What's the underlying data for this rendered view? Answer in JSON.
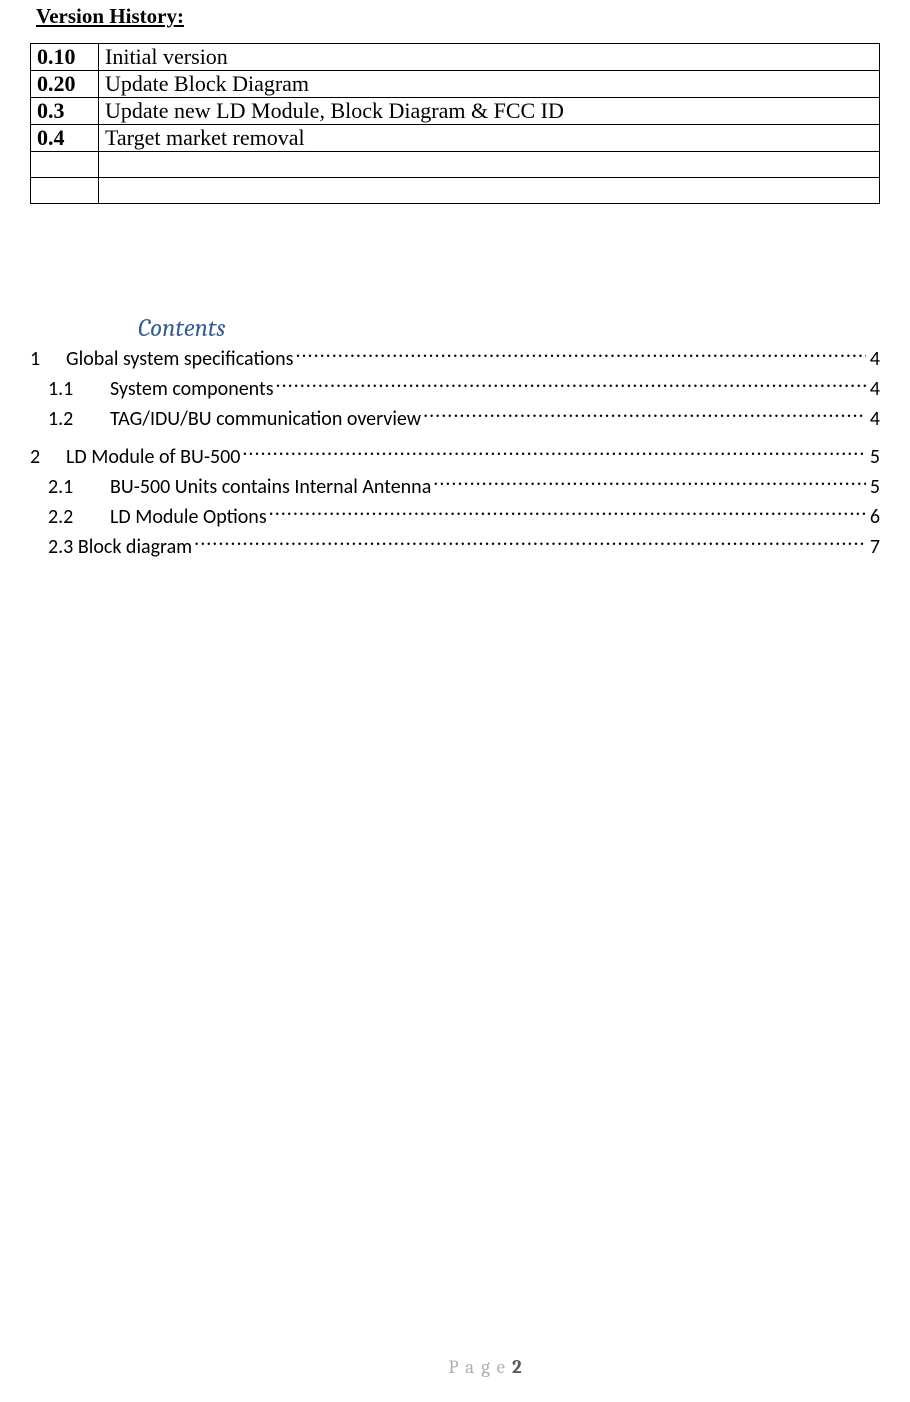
{
  "version_history": {
    "heading": "Version History:",
    "rows": [
      {
        "version": "0.10",
        "desc": "Initial version"
      },
      {
        "version": "0.20",
        "desc": "Update Block Diagram"
      },
      {
        "version": "0.3",
        "desc": "Update new LD Module, Block Diagram & FCC ID"
      },
      {
        "version": "0.4",
        "desc": "Target market removal"
      },
      {
        "version": "",
        "desc": ""
      },
      {
        "version": "",
        "desc": ""
      }
    ]
  },
  "contents": {
    "heading": "Contents",
    "color": "#365f91",
    "entries": [
      {
        "level": 1,
        "num": "1",
        "title": "Global system specifications",
        "page": "4"
      },
      {
        "level": 2,
        "num": "1.1",
        "title": "System components",
        "page": "4"
      },
      {
        "level": 2,
        "num": "1.2",
        "title": "TAG/IDU/BU communication overview",
        "page": "4"
      },
      {
        "level": 1,
        "num": "2",
        "title": "LD Module of BU-500",
        "page": "5",
        "gap": true
      },
      {
        "level": 2,
        "num": "2.1",
        "title": "BU-500 Units contains Internal Antenna",
        "page": "5"
      },
      {
        "level": 2,
        "num": "2.2",
        "title": "LD Module Options",
        "page": "6"
      },
      {
        "level": 2,
        "num": "2.3 Block diagram",
        "flat": true,
        "title": "",
        "page": "7"
      }
    ]
  },
  "footer": {
    "label": "Page",
    "page_number": "2"
  }
}
